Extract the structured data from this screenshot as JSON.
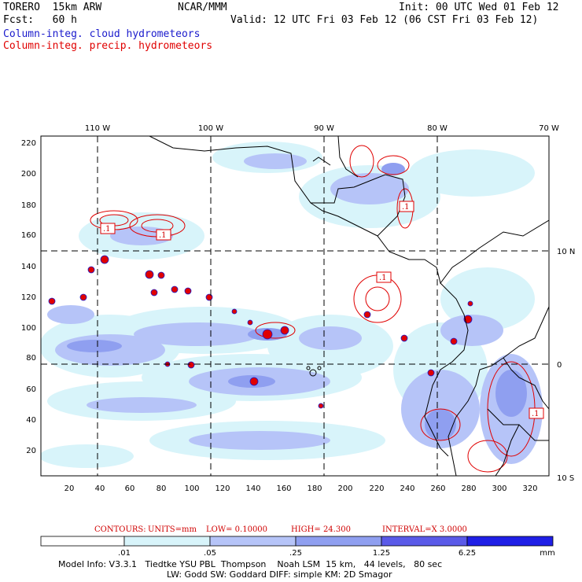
{
  "header": {
    "model": "TORERO  15km ARW",
    "org": "NCAR/MMM",
    "init": "Init: 00 UTC Wed 01 Feb 12",
    "fcst": "Fcst:   60 h",
    "valid": "Valid: 12 UTC Fri 03 Feb 12 (06 CST Fri 03 Feb 12)",
    "field1": "Column-integ. cloud hydrometeors",
    "field2": "Column-integ. precip. hydrometeors"
  },
  "map": {
    "lon_labels": [
      "110 W",
      "100 W",
      "90 W",
      "80 W",
      "70 W"
    ],
    "lat_labels": [
      "10 N",
      "0",
      "10 S"
    ],
    "y_ticks": [
      "220",
      "200",
      "180",
      "160",
      "140",
      "120",
      "100",
      "80",
      "60",
      "40",
      "20"
    ],
    "x_ticks": [
      "20",
      "40",
      "60",
      "80",
      "100",
      "120",
      "140",
      "160",
      "180",
      "200",
      "220",
      "240",
      "260",
      "280",
      "300",
      "320"
    ],
    "contour_labels": [
      ".1",
      ".1",
      ".1",
      ".1",
      ".1"
    ]
  },
  "contour_info": {
    "label": "CONTOURS:",
    "units": "UNITS=mm",
    "low": "LOW= 0.10000",
    "high": "HIGH=  24.300",
    "interval": "INTERVAL=X  3.0000"
  },
  "colorbar": {
    "labels": [
      ".01",
      ".05",
      ".25",
      "1.25",
      "6.25"
    ],
    "unit": "mm",
    "colors": [
      "#ffffff",
      "#d8f4fa",
      "#b6c4f8",
      "#8f9ff0",
      "#5a5ae8",
      "#1f1fe6"
    ]
  },
  "footer": {
    "line1": "Model Info: V3.3.1   Tiedtke YSU PBL  Thompson    Noah LSM  15 km,   44 levels,   80 sec",
    "line2": "LW: Godd SW: Goddard DIFF: simple KM: 2D Smagor"
  }
}
